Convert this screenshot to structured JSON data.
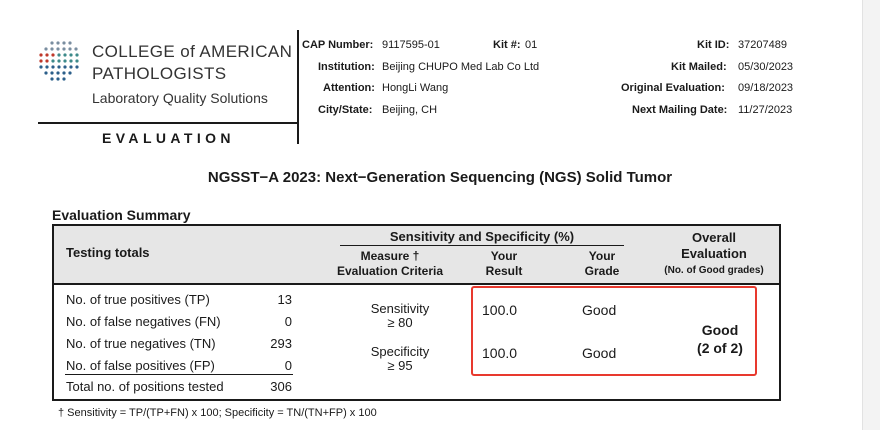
{
  "header": {
    "logo": {
      "line1": "COLLEGE of AMERICAN",
      "line2": "PATHOLOGISTS",
      "line3": "Laboratory Quality Solutions"
    },
    "section_label": "EVALUATION",
    "cap_number_label": "CAP Number:",
    "cap_number": "9117595-01",
    "kit_no_label": "Kit #:",
    "kit_no": "01",
    "institution_label": "Institution:",
    "institution": "Beijing CHUPO Med Lab Co Ltd",
    "attention_label": "Attention:",
    "attention": "HongLi Wang",
    "city_state_label": "City/State:",
    "city_state": "Beijing, CH",
    "kit_id_label": "Kit ID:",
    "kit_id": "37207489",
    "kit_mailed_label": "Kit Mailed:",
    "kit_mailed": "05/30/2023",
    "original_eval_label": "Original Evaluation:",
    "original_eval": "09/18/2023",
    "next_mailing_label": "Next Mailing Date:",
    "next_mailing": "11/27/2023"
  },
  "title": "NGSST−A 2023: Next−Generation Sequencing (NGS) Solid Tumor",
  "summary": {
    "title": "Evaluation Summary",
    "headers": {
      "testing_totals": "Testing totals",
      "sens_spec": "Sensitivity and Specificity (%)",
      "measure_line1": "Measure †",
      "measure_line2": "Evaluation Criteria",
      "result_line1": "Your",
      "result_line2": "Result",
      "grade_line1": "Your",
      "grade_line2": "Grade",
      "overall_line1": "Overall",
      "overall_line2": "Evaluation",
      "overall_line3": "(No. of Good grades)"
    },
    "totals": [
      {
        "label": "No. of true positives (TP)",
        "value": "13"
      },
      {
        "label": "No. of false negatives (FN)",
        "value": "0"
      },
      {
        "label": "No. of true negatives (TN)",
        "value": "293"
      },
      {
        "label": "No. of false positives (FP)",
        "value": "0"
      }
    ],
    "total_positions": {
      "label": "Total no. of positions tested",
      "value": "306"
    },
    "measures": [
      {
        "name": "Sensitivity",
        "criteria": "≥ 80",
        "result": "100.0",
        "grade": "Good"
      },
      {
        "name": "Specificity",
        "criteria": "≥ 95",
        "result": "100.0",
        "grade": "Good"
      }
    ],
    "overall": {
      "grade": "Good",
      "count": "(2 of 2)"
    }
  },
  "footnote": "† Sensitivity = TP/(TP+FN) x 100; Specificity = TN/(TN+FP) x 100",
  "colors": {
    "highlight_box": "#e8392e",
    "header_bg": "#e6e6e6"
  }
}
